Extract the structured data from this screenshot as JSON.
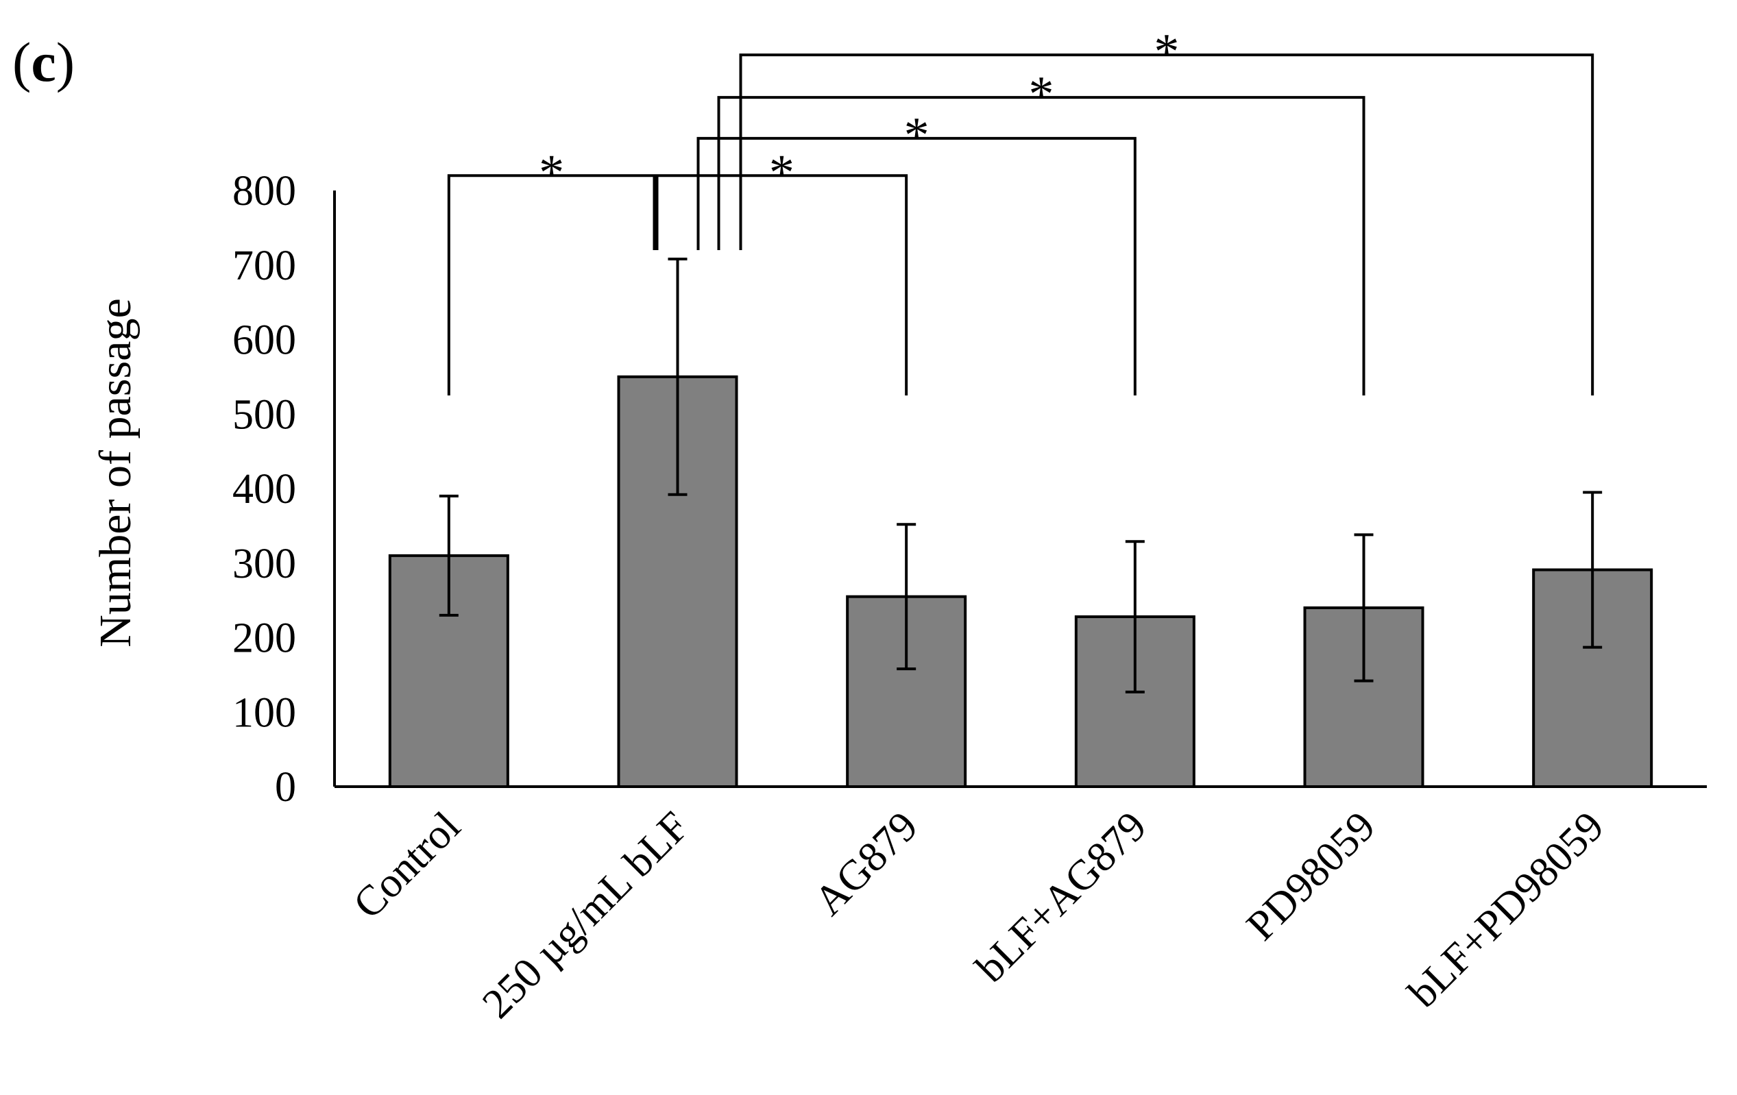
{
  "panel_label": {
    "open": "(",
    "letter": "c",
    "close": ")"
  },
  "chart_data": {
    "type": "bar",
    "title": "",
    "xlabel": "",
    "ylabel": "Number of passage",
    "ylim": [
      0,
      800
    ],
    "yticks": [
      0,
      100,
      200,
      300,
      400,
      500,
      600,
      700,
      800
    ],
    "grid": false,
    "categories": [
      "Control",
      "250 µg/mL bLF",
      "AG879",
      "bLF+AG879",
      "PD98059",
      "bLF+PD98059"
    ],
    "values": [
      310,
      550,
      255,
      228,
      240,
      291
    ],
    "errors": [
      80,
      158,
      97,
      101,
      98,
      104
    ],
    "bar_color": "#808080",
    "significance": [
      {
        "from": 0,
        "to": 1,
        "label": "*",
        "bracket_y": 820,
        "left_drop_to": 525,
        "right_drop_to": 720
      },
      {
        "from": 1,
        "to": 2,
        "label": "*",
        "bracket_y": 820,
        "left_drop_to": 720,
        "right_drop_to": 525
      },
      {
        "from": 1,
        "to": 3,
        "label": "*",
        "bracket_y": 870,
        "left_drop_to": 720,
        "right_drop_to": 525
      },
      {
        "from": 1,
        "to": 4,
        "label": "*",
        "bracket_y": 925,
        "left_drop_to": 720,
        "right_drop_to": 525
      },
      {
        "from": 1,
        "to": 5,
        "label": "*",
        "bracket_y": 982,
        "left_drop_to": 720,
        "right_drop_to": 525
      }
    ]
  }
}
